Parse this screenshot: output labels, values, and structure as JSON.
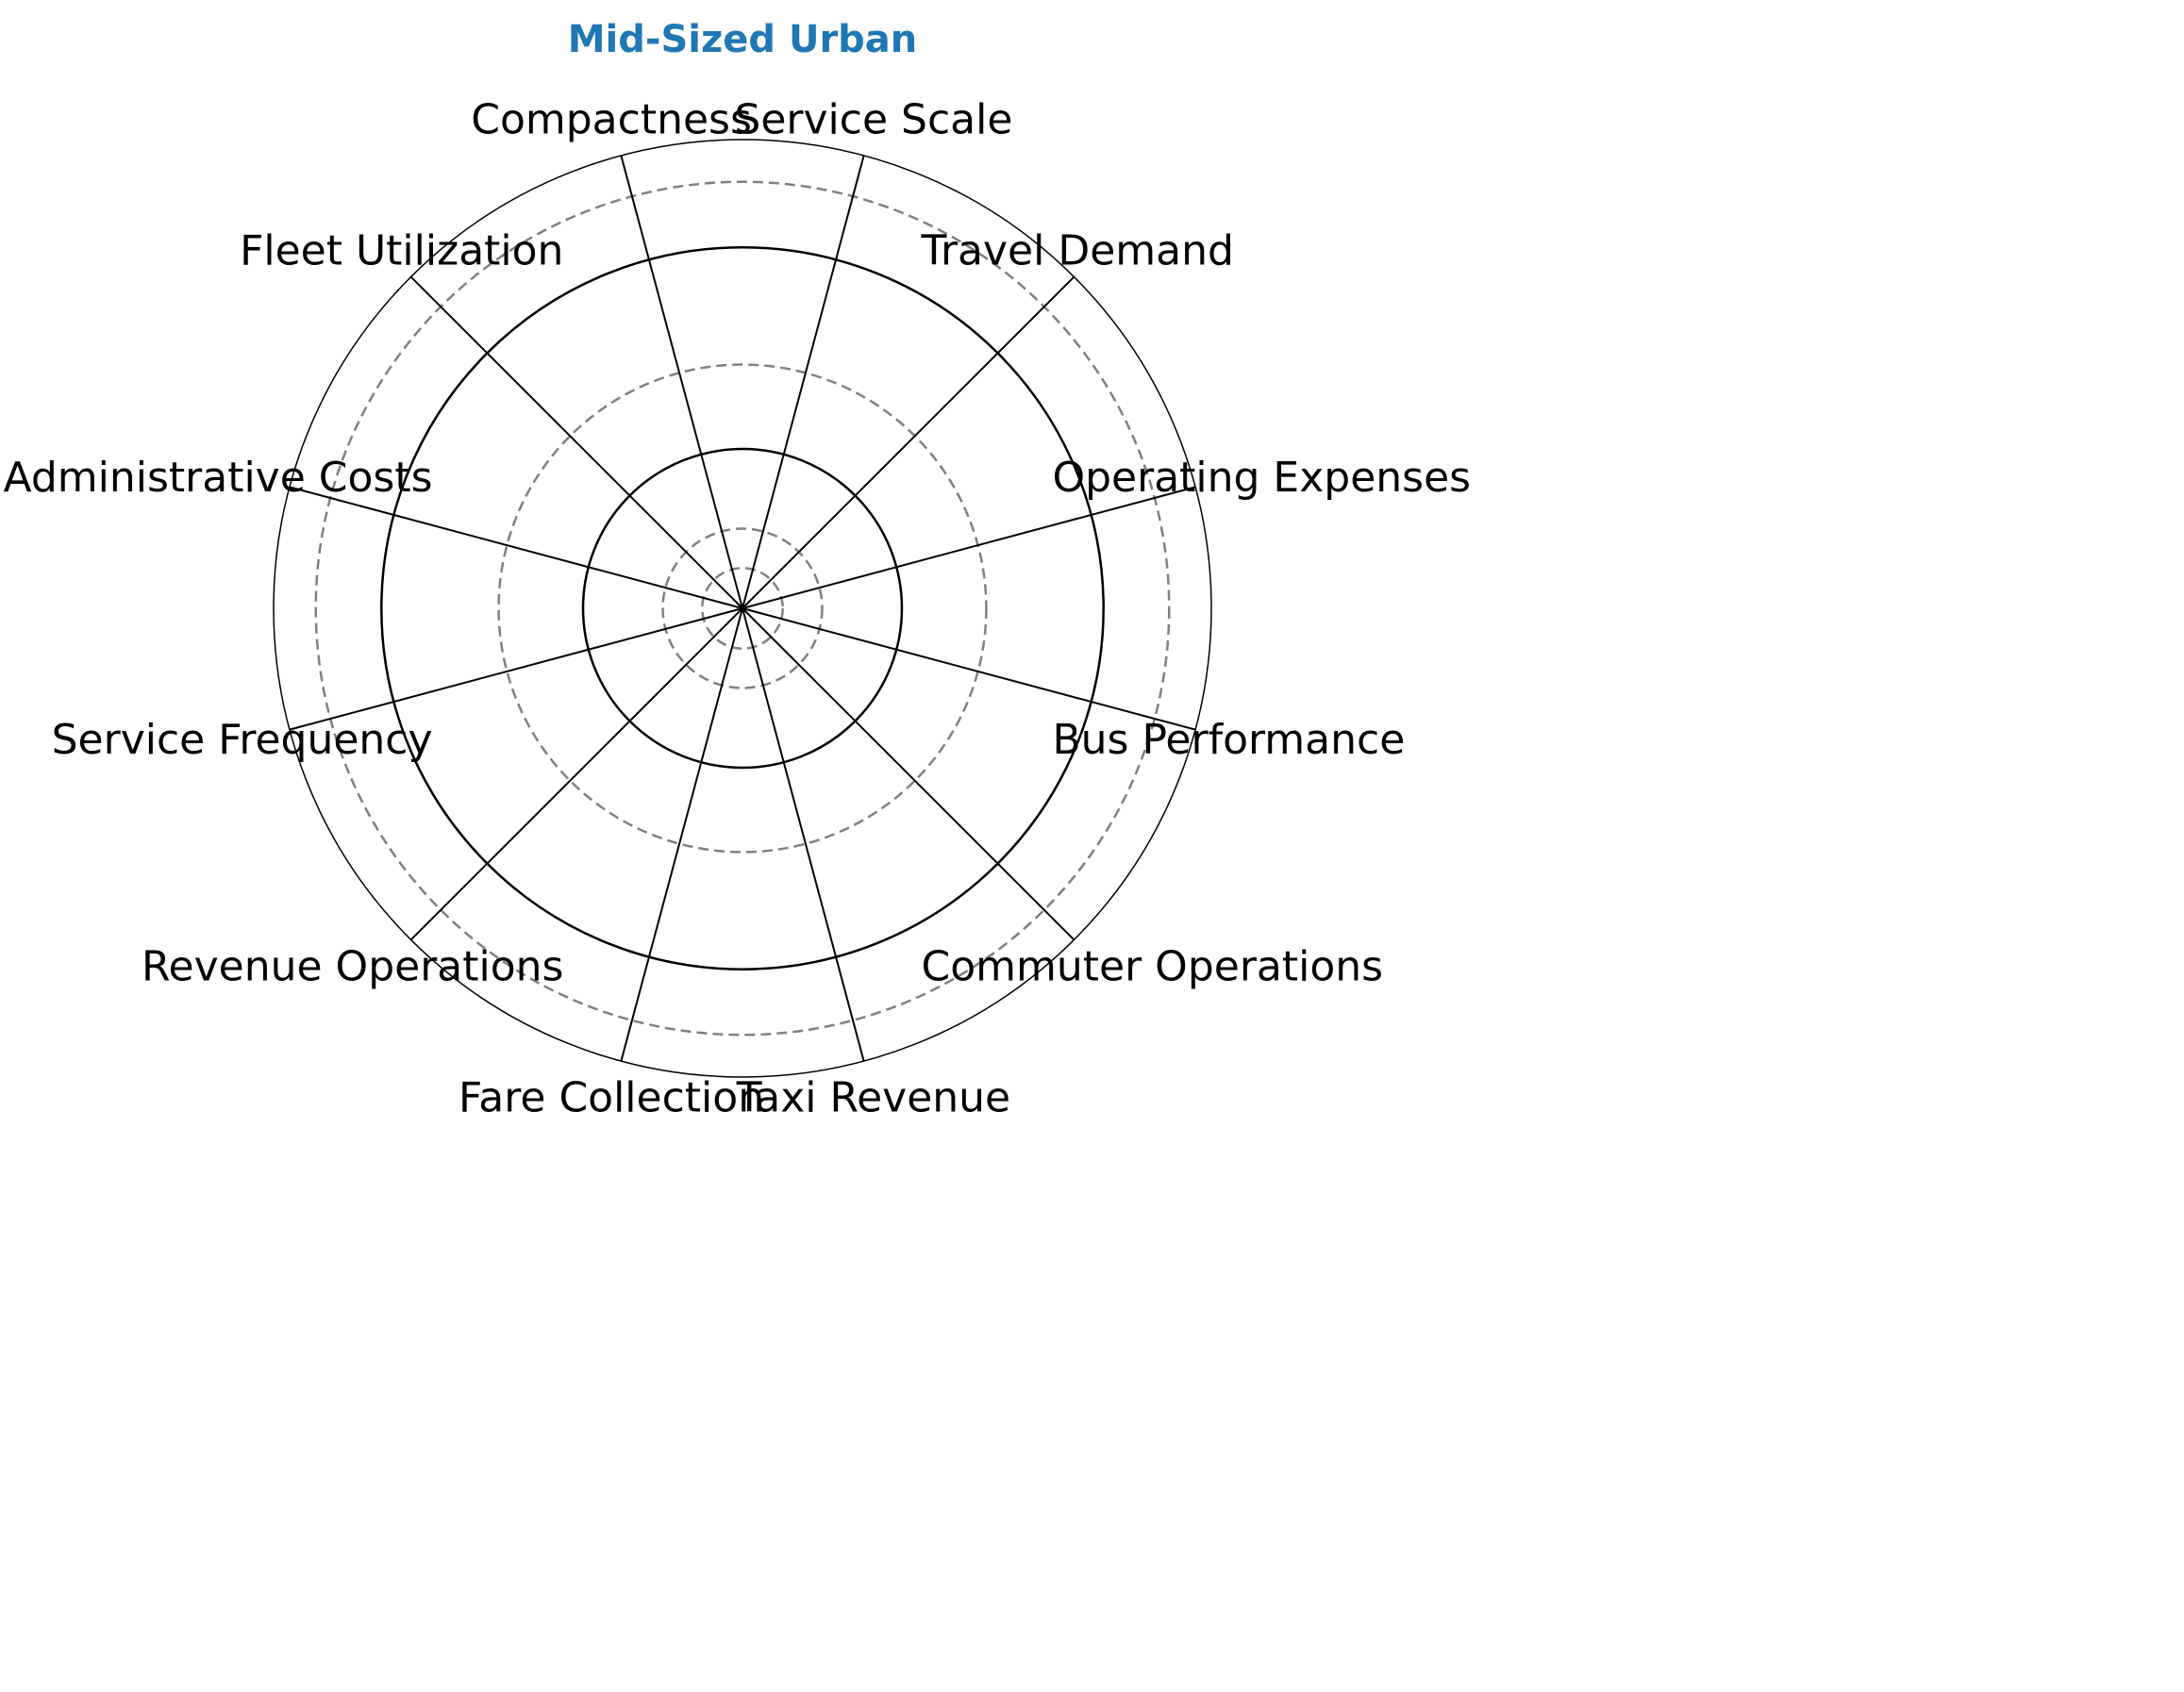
{
  "chart_data": {
    "type": "radar",
    "title": "Mid-Sized Urban",
    "categories": [
      "Service Scale",
      "Travel Demand",
      "Operating Expenses",
      "Bus Performance",
      "Commuter Operations",
      "Taxi Revenue",
      "Fare Collection",
      "Revenue Operations",
      "Service Frequency",
      "Administrative Costs",
      "Fleet Utilization",
      "Compactness"
    ],
    "series": [],
    "rings": {
      "solid": [
        0.34,
        0.77
      ],
      "dashed": [
        0.086,
        0.17,
        0.52,
        0.91
      ]
    },
    "grid": true
  },
  "colors": {
    "title": "#1f77b4",
    "spokes": "#000000",
    "solid_rings": "#000000",
    "dashed_rings": "#808080",
    "outer_frame": "#000000"
  }
}
